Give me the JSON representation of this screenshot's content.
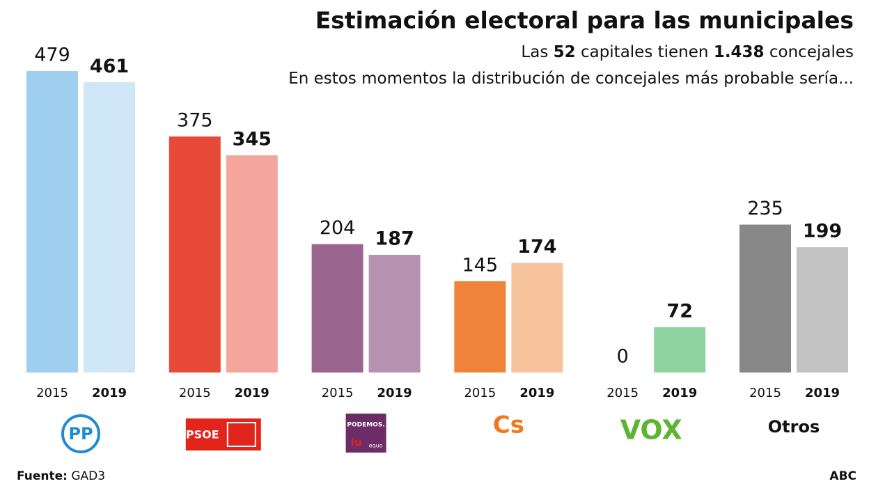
{
  "chart_data": {
    "type": "bar",
    "title": "Estimación electoral para las municipales",
    "subtitle_lines": [
      [
        {
          "text": "Las ",
          "bold": false
        },
        {
          "text": "52",
          "bold": true
        },
        {
          "text": " capitales tienen ",
          "bold": false
        },
        {
          "text": "1.438",
          "bold": true
        },
        {
          "text": " concejales",
          "bold": false
        }
      ],
      [
        {
          "text": "En estos momentos la distribución de concejales más probable sería...",
          "bold": false
        }
      ]
    ],
    "categories": [
      "PP",
      "PSOE",
      "PODEMOS.",
      "Cs",
      "VOX",
      "Otros"
    ],
    "category_extra": [
      null,
      null,
      [
        "iu",
        "equo"
      ],
      null,
      null,
      null
    ],
    "series": [
      {
        "name": "2015",
        "bold": false,
        "values": [
          479,
          375,
          204,
          145,
          0,
          235
        ],
        "colors": [
          "#9fcfee",
          "#e84a3a",
          "#9a668f",
          "#ef833a",
          "#3fae49",
          "#888888"
        ]
      },
      {
        "name": "2019",
        "bold": true,
        "values": [
          461,
          345,
          187,
          174,
          72,
          199
        ],
        "colors": [
          "#cfe6f7",
          "#f4a59c",
          "#b691b0",
          "#f7c39c",
          "#8fd3a0",
          "#c2c2c2"
        ]
      }
    ],
    "logo_colors": [
      "#1e8bd3",
      "#e1251b",
      "#6b2c67",
      "#ef7a1a",
      "#5bb531",
      "#111111"
    ],
    "ylim": [
      0,
      500
    ],
    "source": {
      "label": "Fuente:",
      "text": "GAD3"
    },
    "credit": "ABC"
  }
}
